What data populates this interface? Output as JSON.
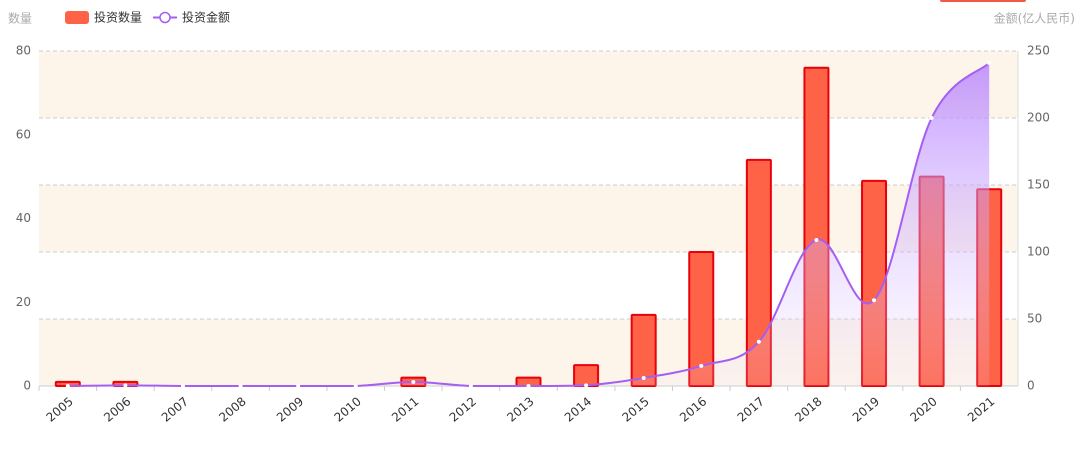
{
  "chart_data": {
    "type": "bar",
    "y_label": "数量",
    "y2_label": "金额(亿人民币)",
    "categories": [
      "2005",
      "2006",
      "2007",
      "2008",
      "2009",
      "2010",
      "2011",
      "2012",
      "2013",
      "2014",
      "2015",
      "2016",
      "2017",
      "2018",
      "2019",
      "2020",
      "2021"
    ],
    "series": [
      {
        "name": "投资数量",
        "type": "bar",
        "color": "#ff6347",
        "values": [
          1,
          1,
          0,
          0,
          0,
          0,
          2,
          0,
          2,
          5,
          17,
          32,
          54,
          76,
          49,
          50,
          47
        ]
      },
      {
        "name": "投资金额",
        "type": "line",
        "axis": "y2",
        "color": "#a55ef2",
        "values": [
          0,
          0.5,
          0,
          0,
          0,
          0,
          3,
          0,
          0,
          0.5,
          6,
          15,
          33,
          109,
          64,
          200,
          241
        ]
      }
    ],
    "ylim": [
      0,
      80
    ],
    "yticks": [
      0,
      20,
      40,
      60,
      80
    ],
    "y2lim": [
      0,
      250
    ],
    "y2ticks": [
      0,
      50,
      100,
      150,
      200,
      250
    ],
    "grid": true
  }
}
